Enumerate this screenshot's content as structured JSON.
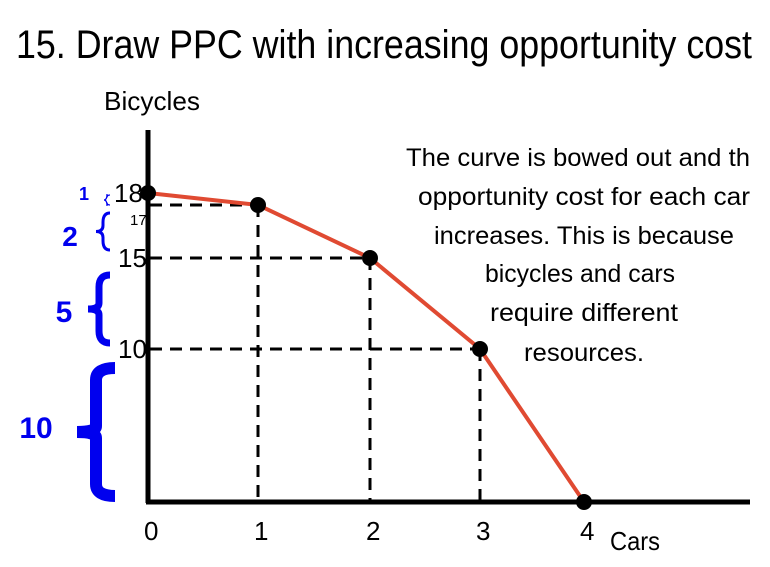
{
  "chart_data": {
    "type": "line",
    "title": "15.  Draw PPC with increasing opportunity cost",
    "xlabel": "Cars",
    "ylabel": "Bicycles",
    "x": [
      0,
      1,
      2,
      3,
      4
    ],
    "y": [
      18,
      17,
      15,
      10,
      0
    ],
    "x_ticks": [
      "0",
      "1",
      "2",
      "3",
      "4"
    ],
    "y_ticks": [
      "18",
      "17",
      "15",
      "10"
    ],
    "line_color": "#e04a32",
    "brace_color": "#0000ee",
    "opportunity_costs": [
      {
        "label": "1",
        "from": 18,
        "to": 17
      },
      {
        "label": "2",
        "from": 17,
        "to": 15
      },
      {
        "label": "5",
        "from": 15,
        "to": 10
      },
      {
        "label": "10",
        "from": 10,
        "to": 0
      }
    ],
    "annotation": [
      "The curve is bowed out and th",
      "opportunity cost for each car",
      "increases. This is because",
      "bicycles and cars",
      "require different",
      "resources."
    ],
    "grid": false,
    "legend": "none"
  }
}
